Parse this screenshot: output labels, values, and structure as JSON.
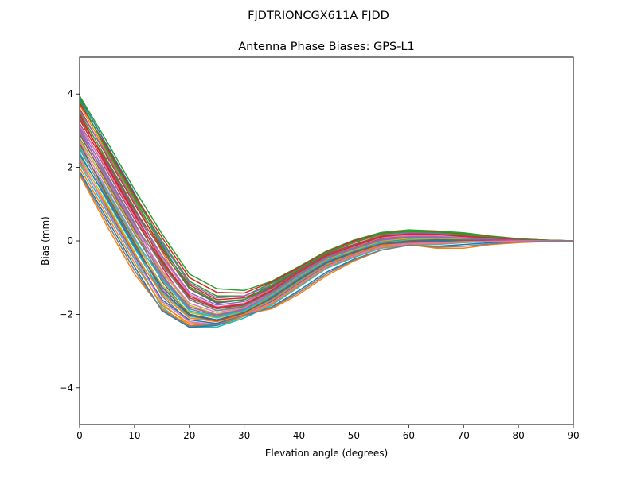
{
  "chart_data": {
    "type": "line",
    "suptitle": "FJDTRIONCGX611A FJDD",
    "title": "Antenna Phase Biases: GPS-L1",
    "xlabel": "Elevation angle (degrees)",
    "ylabel": "Bias (mm)",
    "xlim": [
      0,
      90
    ],
    "ylim": [
      -5,
      5
    ],
    "xticks": [
      0,
      10,
      20,
      30,
      40,
      50,
      60,
      70,
      80,
      90
    ],
    "yticks": [
      -4,
      -2,
      0,
      2,
      4
    ],
    "ytick_labels": [
      "−4",
      "−2",
      "0",
      "2",
      "4"
    ],
    "x": [
      0,
      5,
      10,
      15,
      20,
      25,
      30,
      35,
      40,
      45,
      50,
      55,
      60,
      65,
      70,
      75,
      80,
      85,
      90
    ],
    "grid": false,
    "legend": "none",
    "colors": [
      "#1f77b4",
      "#ff7f0e",
      "#2ca02c",
      "#d62728",
      "#9467bd",
      "#8c564b",
      "#e377c2",
      "#7f7f7f",
      "#bcbd22",
      "#17becf"
    ],
    "series": [
      {
        "values": [
          3.9,
          2.6,
          1.3,
          -0.1,
          -1.3,
          -1.7,
          -1.6,
          -1.2,
          -0.7,
          -0.3,
          -0.05,
          0.2,
          0.25,
          0.2,
          0.15,
          0.1,
          0.05,
          0.02,
          0
        ]
      },
      {
        "values": [
          3.7,
          2.4,
          1.1,
          -0.3,
          -1.5,
          -1.8,
          -1.7,
          -1.3,
          -0.8,
          -0.35,
          -0.1,
          0.15,
          0.2,
          0.18,
          0.12,
          0.08,
          0.04,
          0.01,
          0
        ]
      },
      {
        "values": [
          3.5,
          2.2,
          0.9,
          -0.5,
          -1.6,
          -1.9,
          -1.8,
          -1.35,
          -0.85,
          -0.4,
          -0.15,
          0.1,
          0.18,
          0.16,
          0.1,
          0.07,
          0.03,
          0.01,
          0
        ]
      },
      {
        "values": [
          3.3,
          2.0,
          0.7,
          -0.7,
          -1.8,
          -2.0,
          -1.85,
          -1.4,
          -0.9,
          -0.45,
          -0.2,
          0.05,
          0.15,
          0.14,
          0.09,
          0.06,
          0.03,
          0.01,
          0
        ]
      },
      {
        "values": [
          3.1,
          1.8,
          0.5,
          -0.9,
          -1.9,
          -2.1,
          -1.9,
          -1.45,
          -0.95,
          -0.5,
          -0.25,
          0.0,
          0.1,
          0.1,
          0.07,
          0.05,
          0.02,
          0.0,
          0
        ]
      },
      {
        "values": [
          2.9,
          1.6,
          0.3,
          -1.1,
          -2.0,
          -2.15,
          -1.95,
          -1.5,
          -1.0,
          -0.55,
          -0.3,
          -0.05,
          0.05,
          0.08,
          0.06,
          0.04,
          0.02,
          0.0,
          0
        ]
      },
      {
        "values": [
          2.7,
          1.4,
          0.1,
          -1.3,
          -2.1,
          -2.2,
          -2.0,
          -1.55,
          -1.05,
          -0.6,
          -0.3,
          -0.1,
          0.0,
          0.05,
          0.04,
          0.03,
          0.01,
          0.0,
          0
        ]
      },
      {
        "values": [
          2.5,
          1.2,
          -0.1,
          -1.5,
          -2.2,
          -2.3,
          -2.05,
          -1.6,
          -1.1,
          -0.65,
          -0.35,
          -0.12,
          -0.05,
          0.0,
          0.02,
          0.02,
          0.01,
          0.0,
          0
        ]
      },
      {
        "values": [
          2.3,
          1.0,
          -0.3,
          -1.7,
          -2.3,
          -2.35,
          -2.05,
          -1.7,
          -1.2,
          -0.7,
          -0.4,
          -0.15,
          -0.08,
          -0.05,
          0.0,
          0.01,
          0.0,
          0.0,
          0
        ]
      },
      {
        "values": [
          2.1,
          0.8,
          -0.5,
          -1.8,
          -2.35,
          -2.35,
          -2.1,
          -1.75,
          -1.25,
          -0.75,
          -0.45,
          -0.2,
          -0.1,
          -0.1,
          -0.05,
          -0.02,
          0.0,
          0.0,
          0
        ]
      },
      {
        "values": [
          1.9,
          0.6,
          -0.7,
          -1.9,
          -2.35,
          -2.3,
          -2.05,
          -1.8,
          -1.35,
          -0.85,
          -0.5,
          -0.25,
          -0.12,
          -0.15,
          -0.1,
          -0.05,
          -0.02,
          0.0,
          0
        ]
      },
      {
        "values": [
          1.8,
          0.4,
          -0.9,
          -1.85,
          -2.3,
          -2.25,
          -2.0,
          -1.85,
          -1.45,
          -0.95,
          -0.55,
          -0.25,
          -0.1,
          -0.2,
          -0.2,
          -0.1,
          -0.05,
          -0.02,
          0
        ]
      },
      {
        "values": [
          3.8,
          2.5,
          1.2,
          0.0,
          -1.1,
          -1.5,
          -1.5,
          -1.15,
          -0.75,
          -0.3,
          0.0,
          0.22,
          0.28,
          0.25,
          0.2,
          0.12,
          0.05,
          0.02,
          0
        ]
      },
      {
        "values": [
          3.6,
          2.3,
          1.0,
          -0.2,
          -1.2,
          -1.6,
          -1.55,
          -1.25,
          -0.78,
          -0.33,
          -0.05,
          0.18,
          0.24,
          0.22,
          0.16,
          0.1,
          0.04,
          0.01,
          0
        ]
      },
      {
        "values": [
          3.4,
          2.1,
          0.8,
          -0.4,
          -1.4,
          -1.75,
          -1.65,
          -1.3,
          -0.82,
          -0.38,
          -0.12,
          0.12,
          0.2,
          0.2,
          0.14,
          0.09,
          0.04,
          0.01,
          0
        ]
      },
      {
        "values": [
          3.2,
          1.9,
          0.6,
          -0.6,
          -1.55,
          -1.85,
          -1.75,
          -1.38,
          -0.88,
          -0.42,
          -0.18,
          0.08,
          0.16,
          0.17,
          0.11,
          0.07,
          0.03,
          0.01,
          0
        ]
      },
      {
        "values": [
          3.0,
          1.7,
          0.4,
          -0.8,
          -1.7,
          -1.95,
          -1.82,
          -1.42,
          -0.92,
          -0.47,
          -0.22,
          0.03,
          0.12,
          0.12,
          0.08,
          0.05,
          0.02,
          0.0,
          0
        ]
      },
      {
        "values": [
          2.8,
          1.5,
          0.2,
          -1.0,
          -1.85,
          -2.05,
          -1.88,
          -1.48,
          -0.97,
          -0.52,
          -0.27,
          -0.02,
          0.08,
          0.09,
          0.06,
          0.04,
          0.02,
          0.0,
          0
        ]
      },
      {
        "values": [
          2.6,
          1.3,
          0.0,
          -1.2,
          -1.95,
          -2.1,
          -1.93,
          -1.52,
          -1.02,
          -0.57,
          -0.3,
          -0.07,
          0.03,
          0.06,
          0.04,
          0.03,
          0.01,
          0.0,
          0
        ]
      },
      {
        "values": [
          2.4,
          1.1,
          -0.2,
          -1.4,
          -2.05,
          -2.18,
          -1.98,
          -1.58,
          -1.08,
          -0.62,
          -0.33,
          -0.1,
          -0.02,
          0.02,
          0.02,
          0.02,
          0.01,
          0.0,
          0
        ]
      },
      {
        "values": [
          2.2,
          0.9,
          -0.4,
          -1.6,
          -2.15,
          -2.25,
          -2.02,
          -1.65,
          -1.15,
          -0.67,
          -0.38,
          -0.13,
          -0.06,
          -0.03,
          -0.01,
          0.0,
          0.0,
          0.0,
          0
        ]
      },
      {
        "values": [
          2.0,
          0.7,
          -0.6,
          -1.75,
          -2.25,
          -2.28,
          -2.05,
          -1.72,
          -1.22,
          -0.72,
          -0.42,
          -0.18,
          -0.09,
          -0.08,
          -0.04,
          -0.01,
          0.0,
          0.0,
          0
        ]
      },
      {
        "values": [
          3.95,
          2.7,
          1.4,
          0.2,
          -0.9,
          -1.3,
          -1.35,
          -1.1,
          -0.7,
          -0.28,
          0.02,
          0.23,
          0.3,
          0.27,
          0.22,
          0.13,
          0.06,
          0.02,
          0
        ]
      },
      {
        "values": [
          3.75,
          2.55,
          1.25,
          0.1,
          -1.0,
          -1.4,
          -1.42,
          -1.12,
          -0.72,
          -0.3,
          0.0,
          0.2,
          0.26,
          0.24,
          0.18,
          0.11,
          0.05,
          0.02,
          0
        ]
      },
      {
        "values": [
          3.55,
          2.35,
          1.05,
          -0.05,
          -1.15,
          -1.55,
          -1.5,
          -1.2,
          -0.76,
          -0.32,
          -0.03,
          0.17,
          0.23,
          0.21,
          0.15,
          0.1,
          0.04,
          0.01,
          0
        ]
      },
      {
        "values": [
          3.35,
          2.15,
          0.85,
          -0.25,
          -1.3,
          -1.68,
          -1.6,
          -1.28,
          -0.8,
          -0.36,
          -0.1,
          0.13,
          0.19,
          0.18,
          0.13,
          0.08,
          0.04,
          0.01,
          0
        ]
      },
      {
        "values": [
          3.15,
          1.95,
          0.65,
          -0.45,
          -1.45,
          -1.8,
          -1.7,
          -1.34,
          -0.86,
          -0.4,
          -0.16,
          0.09,
          0.15,
          0.15,
          0.1,
          0.06,
          0.03,
          0.01,
          0
        ]
      },
      {
        "values": [
          2.95,
          1.75,
          0.45,
          -0.65,
          -1.6,
          -1.9,
          -1.78,
          -1.4,
          -0.9,
          -0.45,
          -0.2,
          0.04,
          0.11,
          0.11,
          0.07,
          0.05,
          0.02,
          0.0,
          0
        ]
      },
      {
        "values": [
          2.75,
          1.55,
          0.25,
          -0.85,
          -1.75,
          -2.0,
          -1.85,
          -1.46,
          -0.95,
          -0.5,
          -0.25,
          0.0,
          0.07,
          0.08,
          0.05,
          0.03,
          0.01,
          0.0,
          0
        ]
      },
      {
        "values": [
          2.55,
          1.35,
          0.05,
          -1.05,
          -1.9,
          -2.08,
          -1.9,
          -1.5,
          -1.0,
          -0.55,
          -0.28,
          -0.05,
          0.02,
          0.04,
          0.03,
          0.02,
          0.01,
          0.0,
          0
        ]
      },
      {
        "values": [
          2.35,
          1.15,
          -0.15,
          -1.25,
          -2.0,
          -2.15,
          -1.95,
          -1.56,
          -1.06,
          -0.6,
          -0.32,
          -0.09,
          -0.03,
          0.0,
          0.01,
          0.01,
          0.0,
          0.0,
          0
        ]
      },
      {
        "values": [
          2.15,
          0.95,
          -0.35,
          -1.45,
          -2.1,
          -2.2,
          -2.0,
          -1.62,
          -1.12,
          -0.65,
          -0.36,
          -0.12,
          -0.07,
          -0.05,
          -0.02,
          -0.01,
          0.0,
          0.0,
          0
        ]
      },
      {
        "values": [
          3.85,
          2.45,
          1.15,
          -0.15,
          -1.25,
          -1.65,
          -1.6,
          -1.22,
          -0.77,
          -0.32,
          -0.04,
          0.19,
          0.25,
          0.23,
          0.17,
          0.1,
          0.05,
          0.02,
          0
        ]
      },
      {
        "values": [
          3.45,
          2.05,
          0.75,
          -0.55,
          -1.5,
          -1.82,
          -1.72,
          -1.35,
          -0.85,
          -0.4,
          -0.14,
          0.11,
          0.19,
          0.18,
          0.12,
          0.08,
          0.03,
          0.01,
          0
        ]
      },
      {
        "values": [
          3.05,
          1.65,
          0.35,
          -0.95,
          -1.8,
          -2.02,
          -1.86,
          -1.44,
          -0.93,
          -0.48,
          -0.22,
          0.02,
          0.1,
          0.1,
          0.07,
          0.04,
          0.02,
          0.0,
          0
        ]
      },
      {
        "values": [
          2.65,
          1.25,
          -0.05,
          -1.35,
          -2.02,
          -2.18,
          -1.96,
          -1.54,
          -1.04,
          -0.58,
          -0.3,
          -0.08,
          0.0,
          0.03,
          0.02,
          0.02,
          0.01,
          0.0,
          0
        ]
      },
      {
        "values": [
          2.25,
          0.85,
          -0.45,
          -1.65,
          -2.2,
          -2.28,
          -2.03,
          -1.68,
          -1.18,
          -0.7,
          -0.4,
          -0.16,
          -0.08,
          -0.06,
          -0.03,
          -0.01,
          0.0,
          0.0,
          0
        ]
      },
      {
        "values": [
          1.85,
          0.5,
          -0.8,
          -1.88,
          -2.32,
          -2.28,
          -2.02,
          -1.82,
          -1.4,
          -0.9,
          -0.52,
          -0.25,
          -0.11,
          -0.17,
          -0.15,
          -0.08,
          -0.03,
          -0.01,
          0
        ]
      }
    ]
  }
}
